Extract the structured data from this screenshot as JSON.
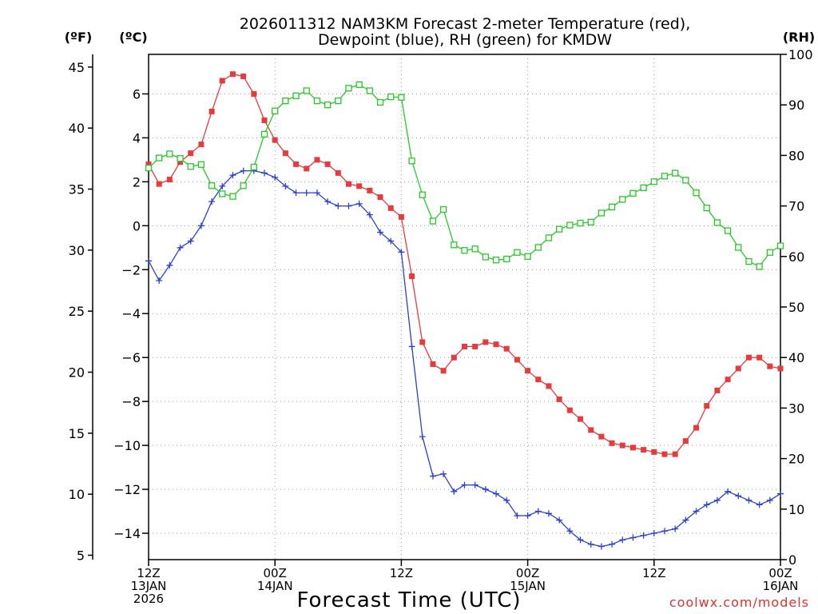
{
  "chart_data": {
    "type": "line",
    "title_line1": "2026011312 NAM3KM Forecast 2-meter Temperature (red),",
    "title_line2": "Dewpoint (blue), RH (green) for KMDW",
    "xlabel": "Forecast Time (UTC)",
    "credit": "coolwx.com/models",
    "units": {
      "fahrenheit": "(ºF)",
      "celsius": "(ºC)",
      "rh": "(RH)"
    },
    "x_hours_range": [
      0,
      60
    ],
    "x_ticks": [
      {
        "hour": 0,
        "l1": "12Z",
        "l2": "13JAN",
        "l3": "2026"
      },
      {
        "hour": 12,
        "l1": "00Z",
        "l2": "14JAN",
        "l3": ""
      },
      {
        "hour": 24,
        "l1": "12Z",
        "l2": "",
        "l3": ""
      },
      {
        "hour": 36,
        "l1": "00Z",
        "l2": "15JAN",
        "l3": ""
      },
      {
        "hour": 48,
        "l1": "12Z",
        "l2": "",
        "l3": ""
      },
      {
        "hour": 60,
        "l1": "00Z",
        "l2": "16JAN",
        "l3": ""
      }
    ],
    "celsius_axis": {
      "range": [
        -15.2,
        7.8
      ],
      "ticks": [
        6,
        4,
        2,
        0,
        -2,
        -4,
        -6,
        -8,
        -10,
        -12,
        -14
      ]
    },
    "fahrenheit_axis": {
      "range": [
        4.64,
        46.04
      ],
      "ticks": [
        45,
        40,
        35,
        30,
        25,
        20,
        15,
        10,
        5
      ]
    },
    "rh_axis": {
      "range": [
        0,
        100
      ],
      "ticks": [
        100,
        90,
        80,
        70,
        60,
        50,
        40,
        30,
        20,
        10,
        0
      ]
    },
    "series": [
      {
        "name": "Temperature",
        "unit": "C",
        "color": "#e8393c",
        "marker": "filled-square",
        "values": [
          2.8,
          1.9,
          2.1,
          2.9,
          3.3,
          3.7,
          5.2,
          6.6,
          6.9,
          6.8,
          6.0,
          4.8,
          3.9,
          3.3,
          2.8,
          2.6,
          3.0,
          2.8,
          2.4,
          1.9,
          1.8,
          1.6,
          1.3,
          0.8,
          0.4,
          -2.3,
          -5.3,
          -6.3,
          -6.6,
          -6.0,
          -5.5,
          -5.5,
          -5.3,
          -5.4,
          -5.6,
          -6.1,
          -6.6,
          -7.0,
          -7.3,
          -7.9,
          -8.4,
          -8.8,
          -9.3,
          -9.6,
          -9.9,
          -10.0,
          -10.1,
          -10.2,
          -10.3,
          -10.4,
          -10.4,
          -9.8,
          -9.2,
          -8.2,
          -7.5,
          -7.0,
          -6.5,
          -6.0,
          -6.0,
          -6.4,
          -6.5
        ]
      },
      {
        "name": "Dewpoint",
        "unit": "C",
        "color": "#2b3fd6",
        "marker": "plus",
        "values": [
          -1.6,
          -2.5,
          -1.8,
          -1.0,
          -0.7,
          0.0,
          1.1,
          1.8,
          2.3,
          2.5,
          2.5,
          2.4,
          2.2,
          1.8,
          1.5,
          1.5,
          1.5,
          1.1,
          0.9,
          0.9,
          1.0,
          0.5,
          -0.3,
          -0.7,
          -1.2,
          -5.5,
          -9.6,
          -11.4,
          -11.3,
          -12.1,
          -11.8,
          -11.8,
          -12.0,
          -12.2,
          -12.5,
          -13.2,
          -13.2,
          -13.0,
          -13.1,
          -13.4,
          -13.9,
          -14.3,
          -14.5,
          -14.6,
          -14.5,
          -14.3,
          -14.2,
          -14.1,
          -14.0,
          -13.9,
          -13.8,
          -13.4,
          -13.0,
          -12.7,
          -12.5,
          -12.1,
          -12.3,
          -12.5,
          -12.7,
          -12.5,
          -12.2
        ]
      },
      {
        "name": "RH",
        "unit": "%",
        "color": "#28c828",
        "marker": "open-square",
        "values": [
          77.5,
          79.5,
          80.3,
          79.4,
          77.8,
          78.2,
          74.0,
          72.4,
          71.9,
          74.0,
          77.7,
          84.2,
          88.8,
          90.8,
          91.8,
          92.8,
          90.8,
          90.0,
          90.8,
          93.3,
          94.0,
          92.8,
          90.5,
          91.6,
          91.5,
          78.9,
          72.2,
          67.0,
          69.3,
          62.3,
          61.2,
          61.5,
          59.9,
          59.3,
          59.5,
          60.8,
          60.0,
          61.8,
          63.7,
          65.4,
          66.2,
          66.6,
          66.8,
          68.6,
          69.8,
          71.3,
          72.5,
          73.6,
          74.8,
          75.9,
          76.5,
          75.1,
          72.6,
          69.6,
          66.7,
          65.1,
          61.8,
          59.0,
          58.0,
          60.8,
          62.1
        ]
      }
    ]
  }
}
